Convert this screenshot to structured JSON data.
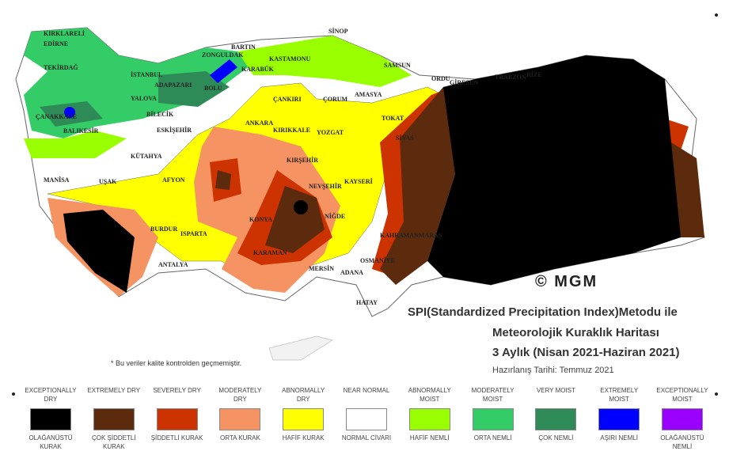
{
  "copyright": "© MGM",
  "title_lines": [
    "SPI(Standardized Precipitation Index)Metodu ile",
    "Meteorolojik Kuraklık Haritası",
    "3 Aylık (Nisan 2021-Haziran 2021)"
  ],
  "prepared_date": "Hazırlanış Tarihi: Temmuz 2021",
  "note": "* Bu veriler kalite kontrolden geçmemiştir.",
  "legend": [
    {
      "en": "EXCEPTIONALLY DRY",
      "tr": "OLAĞANÜSTÜ KURAK",
      "color": "#000000"
    },
    {
      "en": "EXTREMELY DRY",
      "tr": "ÇOK ŞİDDETLİ KURAK",
      "color": "#5c2a0c"
    },
    {
      "en": "SEVERELY DRY",
      "tr": "ŞİDDETLİ KURAK",
      "color": "#cc3300"
    },
    {
      "en": "MODERATELY DRY",
      "tr": "ORTA KURAK",
      "color": "#f59362"
    },
    {
      "en": "ABNORMALLY DRY",
      "tr": "HAFİF KURAK",
      "color": "#ffff00"
    },
    {
      "en": "NEAR NORMAL",
      "tr": "NORMAL CİVARI",
      "color": "#ffffff"
    },
    {
      "en": "ABNORMALLY MOIST",
      "tr": "HAFİF NEMLİ",
      "color": "#99ff00"
    },
    {
      "en": "MODERATELY MOIST",
      "tr": "ORTA NEMLİ",
      "color": "#33cc66"
    },
    {
      "en": "VERY MOIST",
      "tr": "ÇOK NEMLİ",
      "color": "#2e8b57"
    },
    {
      "en": "EXTREMELY MOIST",
      "tr": "AŞIRI NEMLİ",
      "color": "#0000ff"
    },
    {
      "en": "EXCEPTIONALLY MOIST",
      "tr": "OLAĞANÜSTÜ NEMLİ",
      "color": "#9900ff"
    }
  ],
  "cities": [
    "KIRKLARELİ",
    "EDİRNE",
    "TEKİRDAĞ",
    "İSTANBUL",
    "SİNOP",
    "ZONGULDAK",
    "BARTIN",
    "KARABÜK",
    "KASTAMONU",
    "SAMSUN",
    "ADAPAZARI",
    "BOLU",
    "YALOVA",
    "ÇANAKKALE",
    "BALIKESİR",
    "BİLECİK",
    "ESKİŞEHİR",
    "ÇANKIRI",
    "ÇORUM",
    "AMASYA",
    "TOKAT",
    "ORDU",
    "GİRESUN",
    "TRABZON",
    "RİZE",
    "ANKARA",
    "KIRIKKALE",
    "YOZGAT",
    "SİVAS",
    "KÜTAHYA",
    "KIRŞEHİR",
    "NEVŞEHİR",
    "KAYSERİ",
    "MANİSA",
    "UŞAK",
    "AFYON",
    "KONYA",
    "NİĞDE",
    "BURDUR",
    "ISPARTA",
    "KARAMAN",
    "KAHRAMANMARAŞ",
    "ANTALYA",
    "MERSİN",
    "ADANA",
    "OSMANİYE",
    "HATAY"
  ]
}
